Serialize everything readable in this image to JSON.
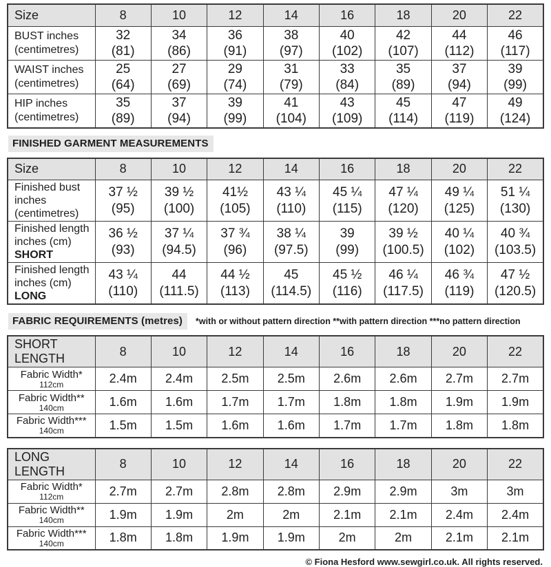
{
  "page": {
    "section1_title": "FINISHED GARMENT MEASUREMENTS",
    "section2_title": "FABRIC REQUIREMENTS (metres)",
    "section2_note": "*with or without pattern direction **with pattern direction ***no pattern direction",
    "footer": "© Fiona Hesford www.sewgirl.co.uk. All rights reserved."
  },
  "colors": {
    "header_bg": "#e2e2e2",
    "highlight_bg": "#e7e7e7",
    "border": "#3a3a3a",
    "text": "#1e1e1e"
  },
  "sizes": [
    "8",
    "10",
    "12",
    "14",
    "16",
    "18",
    "20",
    "22"
  ],
  "body_table": {
    "corner": "Size",
    "rows": [
      {
        "label": "BUST inches\n(centimetres)",
        "cells": [
          "32\n(81)",
          "34\n(86)",
          "36\n(91)",
          "38\n(97)",
          "40\n(102)",
          "42\n(107)",
          "44\n(112)",
          "46\n(117)"
        ]
      },
      {
        "label": "WAIST inches\n(centimetres)",
        "cells": [
          "25\n(64)",
          "27\n(69)",
          "29\n(74)",
          "31\n(79)",
          "33\n(84)",
          "35\n(89)",
          "37\n(94)",
          "39\n(99)"
        ]
      },
      {
        "label": "HIP inches\n(centimetres)",
        "cells": [
          "35\n(89)",
          "37\n(94)",
          "39\n(99)",
          "41\n(104)",
          "43\n(109)",
          "45\n(114)",
          "47\n(119)",
          "49\n(124)"
        ]
      }
    ]
  },
  "finished_table": {
    "corner": "Size",
    "rows": [
      {
        "label": "Finished bust\ninches\n(centimetres)",
        "bold": "",
        "cells": [
          "37 ½\n(95)",
          "39 ½\n(100)",
          "41½\n(105)",
          "43 ¼\n(110)",
          "45 ¼\n(115)",
          "47 ¼\n(120)",
          "49 ¼\n(125)",
          "51 ¼\n(130)"
        ]
      },
      {
        "label": "Finished length\ninches (cm)",
        "bold": "SHORT",
        "cells": [
          "36 ½\n(93)",
          "37 ¼\n(94.5)",
          "37 ¾\n(96)",
          "38 ¼\n(97.5)",
          "39\n(99)",
          "39 ½\n(100.5)",
          "40 ¼\n(102)",
          "40 ¾\n(103.5)"
        ]
      },
      {
        "label": "Finished length\ninches (cm)",
        "bold": "LONG",
        "cells": [
          "43 ¼\n(110)",
          "44\n(111.5)",
          "44 ½\n(113)",
          "45\n(114.5)",
          "45 ½\n(116)",
          "46 ¼\n(117.5)",
          "46 ¾\n(119)",
          "47 ½\n(120.5)"
        ]
      }
    ]
  },
  "short_table": {
    "corner": "SHORT LENGTH",
    "rows": [
      {
        "label": "Fabric Width*",
        "sub": "112cm",
        "cells": [
          "2.4m",
          "2.4m",
          "2.5m",
          "2.5m",
          "2.6m",
          "2.6m",
          "2.7m",
          "2.7m"
        ]
      },
      {
        "label": "Fabric Width**",
        "sub": "140cm",
        "cells": [
          "1.6m",
          "1.6m",
          "1.7m",
          "1.7m",
          "1.8m",
          "1.8m",
          "1.9m",
          "1.9m"
        ]
      },
      {
        "label": "Fabric Width***",
        "sub": "140cm",
        "cells": [
          "1.5m",
          "1.5m",
          "1.6m",
          "1.6m",
          "1.7m",
          "1.7m",
          "1.8m",
          "1.8m"
        ]
      }
    ]
  },
  "long_table": {
    "corner": "LONG LENGTH",
    "rows": [
      {
        "label": "Fabric Width*",
        "sub": "112cm",
        "cells": [
          "2.7m",
          "2.7m",
          "2.8m",
          "2.8m",
          "2.9m",
          "2.9m",
          "3m",
          "3m"
        ]
      },
      {
        "label": "Fabric Width**",
        "sub": "140cm",
        "cells": [
          "1.9m",
          "1.9m",
          "2m",
          "2m",
          "2.1m",
          "2.1m",
          "2.4m",
          "2.4m"
        ]
      },
      {
        "label": "Fabric Width***",
        "sub": "140cm",
        "cells": [
          "1.8m",
          "1.8m",
          "1.9m",
          "1.9m",
          "2m",
          "2m",
          "2.1m",
          "2.1m"
        ]
      }
    ]
  }
}
